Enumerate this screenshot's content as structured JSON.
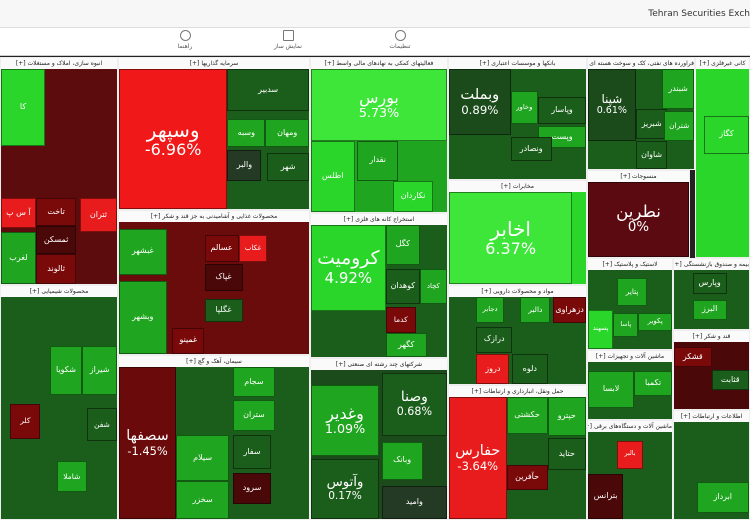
{
  "header": {
    "title": "Tehran Securities Exch",
    "toolbar": [
      "راهنما",
      "نمایش ساز",
      "تنظیمات"
    ]
  },
  "ui": {
    "expand": "[+]"
  },
  "sectors": [
    {
      "title": "انبوه سازی، املاک و مستغلات",
      "color": "#5c0c0c",
      "tiles": [
        {
          "label": "کا",
          "color": "#2bd62b"
        },
        {
          "label": "آ س پ",
          "color": "#e81c1c"
        },
        {
          "label": "لغرب",
          "color": "#1fa51f"
        },
        {
          "label": "تاخت",
          "color": "#7a0a0a"
        },
        {
          "label": "ثمسکن",
          "color": "#4a0808"
        },
        {
          "label": "ثالوند",
          "color": "#7a0a0a"
        },
        {
          "label": "ثتران",
          "color": "#e81c1c"
        }
      ]
    },
    {
      "title": "سرمایه گذاریها",
      "color": "#1b5e1b",
      "tiles": [
        {
          "label": "وسپهر",
          "change": "-6.96%",
          "color": "#f01818"
        },
        {
          "label": "سدبير",
          "color": "#1b5e1b"
        },
        {
          "label": "وسبه",
          "color": "#1fa51f"
        },
        {
          "label": "ومهان",
          "color": "#1fa51f"
        },
        {
          "label": "والبر",
          "color": "#243a24"
        },
        {
          "label": "شهر",
          "color": "#1b5e1b"
        }
      ]
    },
    {
      "title": "محصولات غذایی و آشامیدنی به جز قند و شکر",
      "color": "#6a0c0c",
      "tiles": [
        {
          "label": "غبشهر",
          "color": "#1fa51f"
        },
        {
          "label": "وبشهر",
          "color": "#1fa51f"
        },
        {
          "label": "عسالم",
          "color": "#7a0a0a"
        },
        {
          "label": "غکاب",
          "color": "#e81c1c"
        },
        {
          "label": "غپاک",
          "color": "#4a0808"
        },
        {
          "label": "غگلپا",
          "color": "#1b5e1b"
        },
        {
          "label": "غمینو",
          "color": "#7a0a0a"
        }
      ]
    },
    {
      "title": "سیمان، آهک و گچ",
      "color": "#1b5e1b",
      "tiles": [
        {
          "label": "سصفها",
          "change": "-1.45%",
          "color": "#6a0a0a"
        },
        {
          "label": "سيلام",
          "color": "#1fa51f"
        },
        {
          "label": "سخزر",
          "color": "#1fa51f"
        },
        {
          "label": "سجام",
          "color": "#1fa51f"
        },
        {
          "label": "ستران",
          "color": "#1fa51f"
        },
        {
          "label": "سفار",
          "color": "#1b5e1b"
        },
        {
          "label": "سرود",
          "color": "#4a0808"
        }
      ]
    },
    {
      "title": "فعالیتهای کمکی به نهادهای مالی واسط",
      "color": "#1fa51f",
      "tiles": [
        {
          "label": "بورس",
          "change": "5.73%",
          "color": "#3ee63a"
        },
        {
          "label": "اطلس",
          "color": "#2bd62b"
        },
        {
          "label": "نقدار",
          "color": "#1fa51f"
        },
        {
          "label": "نکاردان",
          "color": "#2bd62b"
        }
      ]
    },
    {
      "title": "استخراج کانه های فلزی",
      "color": "#1b5e1b",
      "tiles": [
        {
          "label": "کروميت",
          "change": "4.92%",
          "color": "#2bd62b"
        },
        {
          "label": "کگل",
          "color": "#1fa51f"
        },
        {
          "label": "کوهدان",
          "color": "#1b5e1b"
        },
        {
          "label": "کدما",
          "color": "#7a0a0a"
        },
        {
          "label": "کگهر",
          "color": "#1fa51f"
        },
        {
          "label": "کچاد",
          "color": "#1fa51f"
        }
      ]
    },
    {
      "title": "شرکتهای چند رشته ای صنعتی",
      "color": "#1b4a1b",
      "tiles": [
        {
          "label": "وغدير",
          "change": "1.09%",
          "color": "#1fa51f"
        },
        {
          "label": "وصنا",
          "change": "0.68%",
          "color": "#1b5e1b"
        },
        {
          "label": "وبانک",
          "color": "#1fa51f"
        },
        {
          "label": "وآتوس",
          "change": "0.17%",
          "color": "#1b5e1b"
        },
        {
          "label": "واميد",
          "color": "#243a24"
        }
      ]
    },
    {
      "title": "بانکها و موسسات اعتباری",
      "color": "#1b5e1b",
      "tiles": [
        {
          "label": "وبملت",
          "change": "0.89%",
          "color": "#1b4a1b"
        },
        {
          "label": "وخاور",
          "color": "#1fa51f"
        },
        {
          "label": "وپاسار",
          "color": "#1b5e1b"
        },
        {
          "label": "وپست",
          "color": "#1fa51f"
        },
        {
          "label": "ونصادر",
          "color": "#1b5e1b"
        }
      ]
    },
    {
      "title": "مخابرات",
      "color": "#2bd62b",
      "tiles": [
        {
          "label": "اخابر",
          "change": "6.37%",
          "color": "#3ee63a"
        }
      ]
    },
    {
      "title": "مواد و محصولات دارویی",
      "color": "#1b5e1b",
      "tiles": [
        {
          "label": "دجابر",
          "color": "#1fa51f"
        },
        {
          "label": "دالبر",
          "color": "#1fa51f"
        },
        {
          "label": "دزهراوی",
          "color": "#7a0a0a"
        },
        {
          "label": "درازک",
          "color": "#1b5e1b"
        },
        {
          "label": "دلوه",
          "color": "#1b5e1b"
        },
        {
          "label": "دروز",
          "color": "#e81c1c"
        }
      ]
    },
    {
      "title": "حمل ونقل، انبارداری و ارتباطات",
      "color": "#1b5e1b",
      "tiles": [
        {
          "label": "حفارس",
          "change": "-3.64%",
          "color": "#e81c1c"
        },
        {
          "label": "حکشتی",
          "color": "#1fa51f"
        },
        {
          "label": "حتايد",
          "color": "#1b5e1b"
        },
        {
          "label": "حآفرين",
          "color": "#7a0a0a"
        },
        {
          "label": "حپترو",
          "color": "#1fa51f"
        }
      ]
    },
    {
      "title": "فراورده های نفتی، کک و سوخت هسته ای",
      "color": "#1b5e1b",
      "tiles": [
        {
          "label": "شپنا",
          "change": "0.61%",
          "color": "#1b4a1b"
        },
        {
          "label": "شبندر",
          "color": "#1fa51f"
        },
        {
          "label": "شبریز",
          "color": "#1b5e1b"
        },
        {
          "label": "شاوان",
          "color": "#1b5e1b"
        },
        {
          "label": "شتران",
          "color": "#1fa51f"
        }
      ]
    },
    {
      "title": "منسوجات",
      "color": "#5a0a10",
      "tiles": [
        {
          "label": "نطرين",
          "change": "0%",
          "color": "#5a0a10"
        }
      ]
    },
    {
      "title": "لاستیک و پلاستیک",
      "color": "#1b5e1b",
      "tiles": [
        {
          "label": "پتاير",
          "color": "#1fa51f"
        },
        {
          "label": "پاسا",
          "color": "#1fa51f"
        },
        {
          "label": "پکوير",
          "color": "#1fa51f"
        },
        {
          "label": "پسهند",
          "color": "#2bd62b"
        }
      ]
    },
    {
      "title": "ماشین آلات و تجهیزات",
      "color": "#1b5e1b",
      "tiles": [
        {
          "label": "لابسا",
          "color": "#1fa51f"
        },
        {
          "label": "تکمبا",
          "color": "#1fa51f"
        }
      ]
    },
    {
      "title": "ماشین آلات و دستگاه‌های برقی",
      "color": "#1b5e1b",
      "tiles": [
        {
          "label": "بالبر",
          "color": "#e81c1c"
        },
        {
          "label": "بترانس",
          "color": "#4a0808"
        }
      ]
    },
    {
      "title": "کانی غیرفلزی",
      "color": "#2bd62b",
      "tiles": [
        {
          "label": "کگاز",
          "color": "#2bd62b"
        }
      ]
    },
    {
      "title": "بیمه و صندوق بازنشستگی",
      "color": "#1b5e1b",
      "tiles": [
        {
          "label": "وپارس",
          "color": "#1b5e1b"
        },
        {
          "label": "البرز",
          "color": "#1fa51f"
        }
      ]
    },
    {
      "title": "قند و شکر",
      "color": "#4a0808",
      "tiles": [
        {
          "label": "قشکر",
          "color": "#7a0a0a"
        },
        {
          "label": "قثابت",
          "color": "#1b5e1b"
        }
      ]
    },
    {
      "title": "اطلاعات و ارتباطات",
      "color": "#1b5e1b",
      "tiles": [
        {
          "label": "ابرداز",
          "color": "#1fa51f"
        }
      ]
    },
    {
      "title": "محصولات شیمیایی",
      "color": "#1b5e1b",
      "tiles": [
        {
          "label": "شکويا",
          "color": "#1fa51f"
        },
        {
          "label": "شیراز",
          "color": "#1fa51f"
        },
        {
          "label": "کلر",
          "color": "#7a0a0a"
        },
        {
          "label": "شفن",
          "color": "#1b5e1b"
        },
        {
          "label": "شاملا",
          "color": "#1fa51f"
        }
      ]
    }
  ]
}
